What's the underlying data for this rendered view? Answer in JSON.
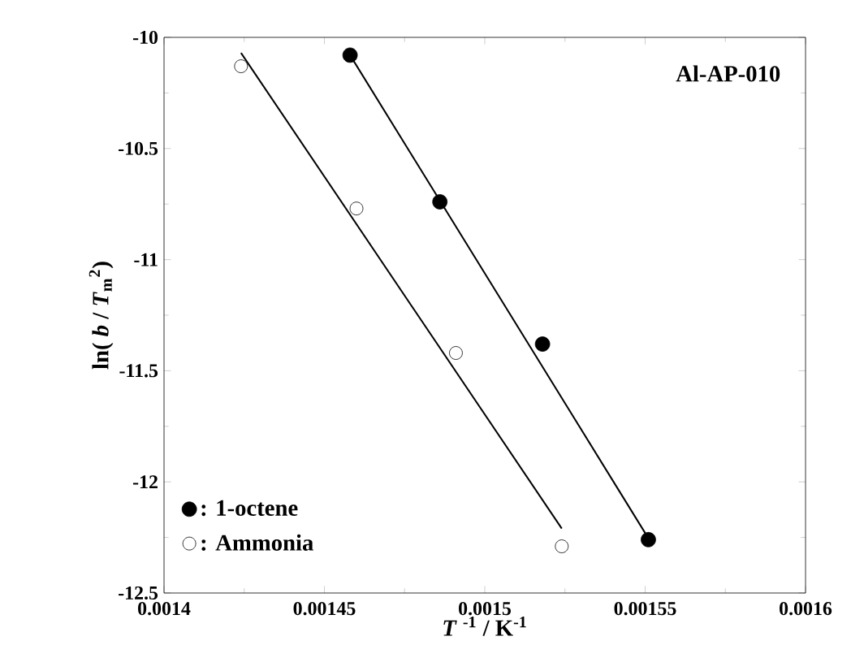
{
  "chart_data": {
    "type": "scatter",
    "xlabel": "*T* $^{-1}$ / K$^{-1}$",
    "ylabel": "ln( *b* / *T*$_{m}$$^{2}$)",
    "annotations": [
      "Al-AP-010"
    ],
    "series": [
      {
        "name": ": 1-octene",
        "color": "#000000",
        "marker": "circle",
        "x": [
          0.001458,
          0.001486,
          0.001518,
          0.001551
        ],
        "values": [
          -10.08,
          -10.74,
          -11.38,
          -12.26
        ]
      },
      {
        "name": ": Ammonia",
        "color": "#000000",
        "marker": "circle-open",
        "x": [
          0.001424,
          0.00146,
          0.001491,
          0.001524
        ],
        "values": [
          -10.13,
          -10.77,
          -11.42,
          -12.29
        ]
      },
      {
        "type": "line",
        "color": "#000000",
        "marker": "none",
        "x": [
          0.001458,
          0.00155
        ],
        "values": [
          -10.08,
          -12.23
        ]
      },
      {
        "type": "line",
        "color": "#000000",
        "marker": "none",
        "x": [
          0.001424,
          0.001524
        ],
        "values": [
          -10.07,
          -12.21
        ]
      }
    ],
    "xlim": [
      0.0014,
      0.0016
    ],
    "ylim": [
      -12.5,
      -10
    ],
    "xticks": [
      0.0014,
      0.00145,
      0.0015,
      0.00155,
      0.0016
    ],
    "yticks": [
      -10,
      -10.5,
      -11,
      -11.5,
      -12,
      -12.5
    ],
    "grid": false,
    "legend": "bottom left"
  }
}
